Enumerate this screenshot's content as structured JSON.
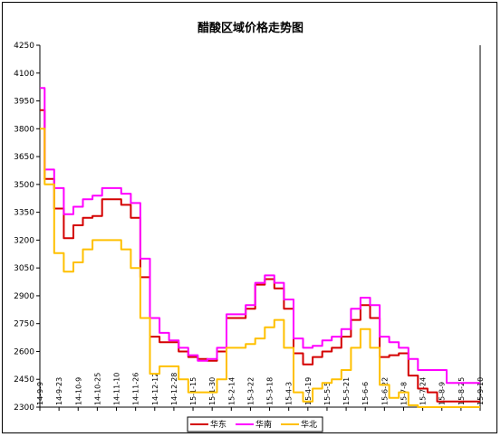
{
  "chart_data": {
    "type": "line",
    "title": "醋酸区域价格走势图",
    "xlabel": "",
    "ylabel": "",
    "ylim": [
      2300,
      4250
    ],
    "yticks": [
      2300,
      2450,
      2600,
      2750,
      2900,
      3050,
      3200,
      3350,
      3500,
      3650,
      3800,
      3950,
      4100,
      4250
    ],
    "grid": false,
    "legend_position": "bottom",
    "x_tick_labels": [
      "14-9-9",
      "14-9-23",
      "14-10-9",
      "14-10-25",
      "14-11-10",
      "14-11-26",
      "14-12-12",
      "14-12-28",
      "15-1-15",
      "15-1-30",
      "15-2-14",
      "15-3-22",
      "15-3-18",
      "15-4-3",
      "15-4-19",
      "15-5-5",
      "15-5-21",
      "15-6-6",
      "15-6-22",
      "15-7-8",
      "15-7-24",
      "15-8-9",
      "15-8-25",
      "15-9-10"
    ],
    "x": [
      0,
      0.5,
      1,
      1.5,
      2,
      2.5,
      3,
      3.5,
      4,
      4.5,
      5,
      5.5,
      6,
      6.5,
      7,
      7.5,
      8,
      8.5,
      9,
      9.5,
      10,
      10.5,
      11,
      11.5,
      12,
      12.5,
      13,
      13.5,
      14,
      14.5,
      15,
      15.5,
      16,
      16.5,
      17,
      17.5,
      18,
      18.5,
      19,
      19.5,
      20,
      20.5,
      21,
      21.5,
      22,
      22.5,
      23
    ],
    "series": [
      {
        "name": "华东",
        "color": "#d40000",
        "values": [
          3900,
          3530,
          3370,
          3210,
          3280,
          3320,
          3330,
          3420,
          3420,
          3390,
          3320,
          3000,
          2680,
          2650,
          2650,
          2600,
          2570,
          2560,
          2550,
          2600,
          2780,
          2780,
          2830,
          2960,
          2990,
          2940,
          2830,
          2590,
          2530,
          2570,
          2600,
          2620,
          2680,
          2770,
          2850,
          2780,
          2570,
          2580,
          2590,
          2470,
          2400,
          2380,
          2330,
          2330,
          2330,
          2330,
          2330
        ]
      },
      {
        "name": "华南",
        "color": "#ff00ff",
        "values": [
          4020,
          3580,
          3480,
          3340,
          3380,
          3420,
          3440,
          3480,
          3480,
          3450,
          3400,
          3100,
          2780,
          2700,
          2660,
          2620,
          2580,
          2550,
          2560,
          2620,
          2800,
          2800,
          2850,
          2970,
          3010,
          2970,
          2880,
          2670,
          2620,
          2630,
          2660,
          2680,
          2720,
          2830,
          2890,
          2850,
          2680,
          2650,
          2620,
          2560,
          2500,
          2500,
          2500,
          2430,
          2430,
          2430,
          2430
        ]
      },
      {
        "name": "华北",
        "color": "#ffc000",
        "values": [
          3800,
          3500,
          3130,
          3030,
          3080,
          3150,
          3200,
          3200,
          3200,
          3150,
          3050,
          2780,
          2480,
          2520,
          2520,
          2450,
          2380,
          2380,
          2380,
          2450,
          2620,
          2620,
          2640,
          2670,
          2730,
          2770,
          2620,
          2380,
          2330,
          2400,
          2430,
          2450,
          2500,
          2620,
          2720,
          2620,
          2420,
          2350,
          2380,
          2310,
          2300,
          2300,
          2300,
          2300,
          2300,
          2300,
          2300
        ]
      }
    ]
  }
}
